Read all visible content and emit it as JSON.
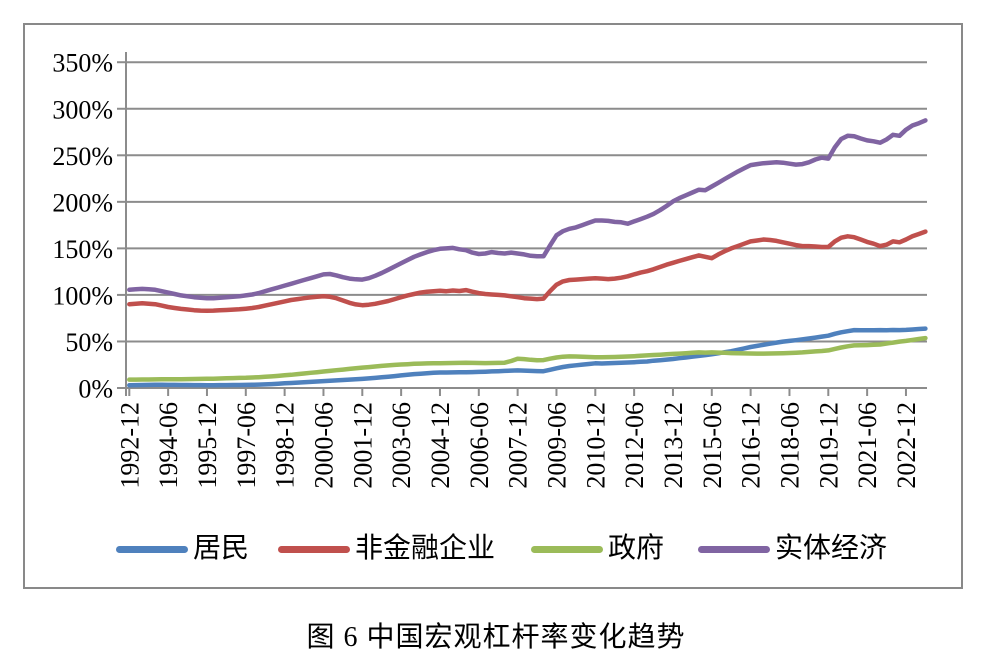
{
  "caption": "图 6  中国宏观杠杆率变化趋势",
  "colors": {
    "household": "#4F81BD",
    "corporate": "#C0504D",
    "government": "#9BBB59",
    "real_economy": "#8064A2",
    "grid": "#8C8C8C",
    "axis_text": "#000000",
    "frame_border": "#898989"
  },
  "chart_data": {
    "type": "line",
    "title": "",
    "xlabel": "",
    "ylabel": "",
    "y_unit": "%",
    "ylim": [
      0,
      350
    ],
    "y_tick_step": 50,
    "y_tick_labels": [
      "0%",
      "50%",
      "100%",
      "150%",
      "200%",
      "250%",
      "300%",
      "350%"
    ],
    "x_frequency": "quarterly",
    "x_start": "1992-12",
    "x_end": "2023-09",
    "x_tick_labels": [
      "1992-12",
      "1994-06",
      "1995-12",
      "1997-06",
      "1998-12",
      "2000-06",
      "2001-12",
      "2003-06",
      "2004-12",
      "2006-06",
      "2007-12",
      "2009-06",
      "2010-12",
      "2012-06",
      "2013-12",
      "2015-06",
      "2016-12",
      "2018-06",
      "2019-12",
      "2021-06",
      "2022-12"
    ],
    "x_ticks_every_n_quarters": 6,
    "grid": "horizontal",
    "legend_position": "bottom",
    "series": [
      {
        "name": "居民",
        "color": "#4F81BD",
        "values": [
          3.0,
          3.1,
          3.2,
          3.3,
          3.4,
          3.4,
          3.3,
          3.3,
          3.2,
          3.2,
          3.1,
          3.1,
          3.0,
          3.0,
          3.1,
          3.1,
          3.2,
          3.2,
          3.3,
          3.4,
          3.6,
          3.9,
          4.2,
          4.6,
          5.0,
          5.4,
          5.8,
          6.2,
          6.6,
          7.0,
          7.4,
          7.8,
          8.2,
          8.6,
          9.0,
          9.4,
          9.8,
          10.3,
          10.9,
          11.5,
          12.1,
          12.8,
          13.5,
          14.2,
          14.9,
          15.4,
          15.9,
          16.3,
          16.6,
          16.7,
          16.8,
          16.9,
          17.0,
          17.1,
          17.3,
          17.5,
          17.8,
          18.1,
          18.4,
          18.7,
          18.9,
          18.7,
          18.4,
          18.2,
          18.0,
          19.6,
          21.2,
          22.6,
          23.6,
          24.4,
          25.1,
          25.8,
          26.5,
          26.3,
          26.6,
          26.9,
          27.2,
          27.4,
          27.7,
          28.1,
          28.5,
          29.3,
          29.9,
          30.5,
          31.2,
          32.0,
          32.8,
          33.6,
          34.5,
          35.2,
          36.2,
          37.3,
          38.5,
          39.5,
          41.0,
          42.5,
          44.0,
          45.2,
          46.4,
          47.6,
          48.8,
          49.8,
          50.6,
          51.4,
          52.2,
          53.2,
          54.2,
          55.2,
          56.2,
          58.2,
          59.8,
          61.0,
          62.2,
          62.1,
          62.0,
          62.1,
          62.2,
          62.1,
          62.3,
          62.2,
          62.4,
          62.9,
          63.4,
          63.8
        ]
      },
      {
        "name": "非金融企业",
        "color": "#C0504D",
        "values": [
          90.0,
          90.5,
          91.0,
          90.5,
          90.0,
          88.5,
          87.0,
          86.0,
          85.0,
          84.3,
          83.6,
          83.2,
          83.0,
          83.2,
          83.5,
          83.8,
          84.2,
          84.6,
          85.2,
          86.0,
          87.0,
          88.5,
          90.0,
          91.5,
          93.0,
          94.5,
          95.5,
          96.5,
          97.3,
          98.0,
          98.5,
          98.0,
          96.5,
          94.0,
          91.5,
          89.8,
          89.0,
          89.5,
          90.5,
          92.0,
          93.5,
          95.5,
          97.5,
          99.5,
          101.0,
          102.5,
          103.5,
          104.0,
          104.5,
          104.0,
          104.8,
          104.2,
          105.2,
          103.5,
          102.0,
          101.0,
          100.5,
          100.0,
          99.5,
          98.5,
          97.5,
          96.5,
          96.0,
          95.5,
          96.0,
          104.0,
          111.0,
          114.5,
          116.0,
          116.5,
          117.0,
          117.5,
          118.0,
          117.5,
          117.0,
          117.5,
          118.5,
          120.0,
          122.0,
          124.0,
          125.5,
          127.5,
          130.0,
          132.5,
          134.5,
          136.5,
          138.5,
          140.5,
          142.5,
          141.0,
          139.5,
          143.5,
          147.0,
          150.0,
          152.5,
          155.0,
          157.5,
          158.5,
          159.5,
          159.0,
          158.0,
          156.5,
          155.0,
          153.5,
          152.5,
          152.5,
          152.0,
          151.5,
          151.5,
          157.5,
          161.5,
          163.0,
          162.0,
          159.5,
          157.0,
          155.0,
          152.5,
          154.0,
          157.5,
          156.5,
          159.5,
          163.0,
          165.5,
          168.0
        ]
      },
      {
        "name": "政府",
        "color": "#9BBB59",
        "values": [
          9.0,
          9.0,
          9.1,
          9.1,
          9.2,
          9.3,
          9.3,
          9.4,
          9.5,
          9.6,
          9.7,
          9.8,
          9.9,
          10.0,
          10.2,
          10.4,
          10.6,
          10.8,
          11.0,
          11.3,
          11.6,
          12.0,
          12.5,
          13.0,
          13.6,
          14.2,
          14.9,
          15.6,
          16.3,
          17.0,
          17.7,
          18.4,
          19.1,
          19.8,
          20.5,
          21.2,
          21.9,
          22.5,
          23.1,
          23.7,
          24.3,
          24.8,
          25.2,
          25.6,
          26.0,
          26.2,
          26.4,
          26.5,
          26.6,
          26.7,
          26.9,
          27.0,
          27.1,
          27.0,
          26.9,
          26.8,
          26.9,
          27.0,
          27.2,
          29.0,
          31.5,
          31.0,
          30.3,
          29.8,
          30.0,
          31.5,
          32.8,
          33.6,
          34.0,
          33.8,
          33.5,
          33.3,
          33.0,
          33.1,
          33.2,
          33.3,
          33.5,
          33.8,
          34.2,
          34.6,
          35.0,
          35.4,
          35.8,
          36.2,
          36.6,
          37.0,
          37.4,
          37.8,
          38.2,
          38.0,
          38.3,
          38.0,
          37.8,
          37.5,
          37.3,
          37.2,
          37.1,
          37.0,
          37.0,
          37.1,
          37.2,
          37.4,
          37.6,
          37.9,
          38.3,
          38.8,
          39.3,
          39.8,
          40.4,
          42.0,
          43.5,
          44.8,
          45.8,
          45.9,
          46.1,
          46.4,
          46.7,
          47.8,
          48.8,
          49.8,
          50.6,
          51.6,
          52.6,
          53.6
        ]
      },
      {
        "name": "实体经济",
        "color": "#8064A2",
        "values": [
          105.5,
          106.0,
          106.5,
          106.0,
          105.5,
          104.0,
          102.5,
          101.0,
          99.5,
          98.5,
          97.5,
          97.0,
          96.5,
          96.5,
          97.0,
          97.5,
          98.0,
          98.5,
          99.5,
          100.5,
          102.0,
          104.0,
          106.0,
          108.0,
          110.0,
          112.0,
          114.0,
          116.0,
          118.0,
          120.0,
          122.0,
          122.5,
          121.0,
          119.0,
          117.5,
          116.8,
          116.5,
          118.0,
          120.5,
          123.5,
          127.0,
          130.5,
          134.0,
          137.5,
          141.0,
          143.5,
          146.0,
          148.0,
          149.5,
          150.0,
          150.5,
          149.0,
          148.0,
          145.5,
          144.0,
          144.5,
          146.0,
          145.0,
          144.5,
          145.5,
          144.5,
          143.5,
          142.0,
          141.5,
          141.5,
          153.0,
          164.0,
          168.5,
          171.0,
          172.5,
          175.0,
          177.5,
          180.0,
          180.0,
          179.5,
          178.5,
          178.0,
          176.5,
          179.0,
          181.5,
          184.0,
          187.0,
          191.0,
          195.5,
          200.5,
          204.0,
          207.0,
          210.0,
          213.0,
          212.5,
          216.5,
          220.5,
          224.5,
          228.5,
          232.5,
          236.0,
          239.5,
          240.5,
          241.5,
          242.0,
          242.5,
          242.0,
          241.0,
          240.0,
          240.5,
          242.5,
          245.5,
          247.5,
          246.5,
          258.5,
          267.5,
          271.0,
          270.5,
          268.0,
          266.0,
          265.0,
          263.5,
          267.0,
          272.0,
          271.0,
          277.5,
          282.0,
          284.5,
          287.5
        ]
      }
    ]
  }
}
